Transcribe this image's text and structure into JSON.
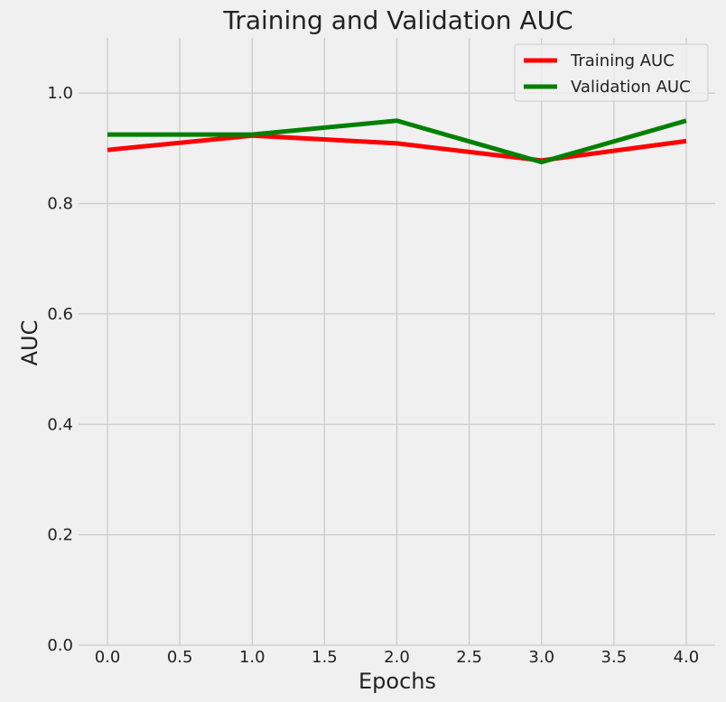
{
  "chart_data": {
    "type": "line",
    "title": "Training and Validation AUC",
    "xlabel": "Epochs",
    "ylabel": "AUC",
    "x": [
      0,
      1,
      2,
      3,
      4
    ],
    "xlim": [
      -0.2,
      4.2
    ],
    "ylim": [
      0.0,
      1.1
    ],
    "xticks": [
      0.0,
      0.5,
      1.0,
      1.5,
      2.0,
      2.5,
      3.0,
      3.5,
      4.0
    ],
    "xtick_labels": [
      "0.0",
      "0.5",
      "1.0",
      "1.5",
      "2.0",
      "2.5",
      "3.0",
      "3.5",
      "4.0"
    ],
    "yticks": [
      0.0,
      0.2,
      0.4,
      0.6,
      0.8,
      1.0
    ],
    "ytick_labels": [
      "0.0",
      "0.2",
      "0.4",
      "0.6",
      "0.8",
      "1.0"
    ],
    "grid": true,
    "legend_position": "top-right",
    "background": "#f0f0f0",
    "grid_color": "#cbcbcb",
    "series": [
      {
        "name": "Training AUC",
        "color": "#ff0000",
        "values": [
          0.897,
          0.923,
          0.909,
          0.878,
          0.913
        ]
      },
      {
        "name": "Validation AUC",
        "color": "#008000",
        "values": [
          0.925,
          0.925,
          0.95,
          0.875,
          0.95
        ]
      }
    ]
  }
}
